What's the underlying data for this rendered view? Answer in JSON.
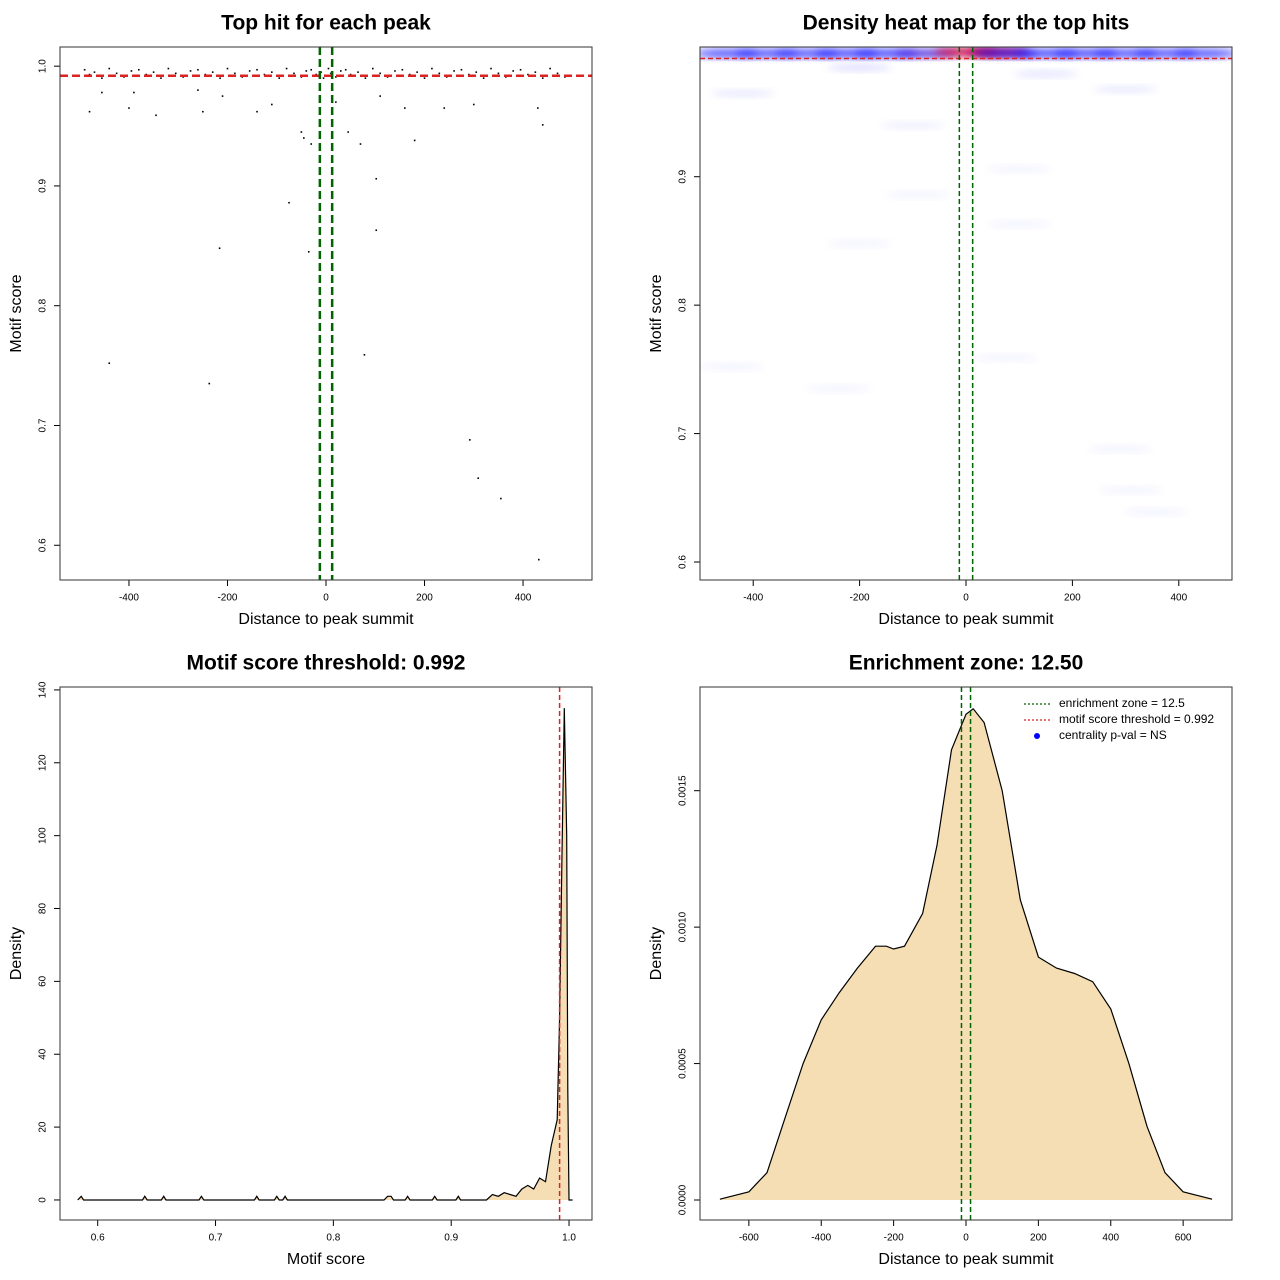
{
  "chart_data": [
    {
      "type": "scatter",
      "title": "Top hit for each peak",
      "x_label": "Distance to peak summit",
      "y_label": "Motif score",
      "color": "#000000",
      "x": [
        -490,
        -480,
        -470,
        -455,
        -440,
        -425,
        -410,
        -395,
        -380,
        -365,
        -350,
        -335,
        -320,
        -305,
        -290,
        -275,
        -260,
        -245,
        -230,
        -215,
        -200,
        -185,
        -170,
        -155,
        -140,
        -125,
        -110,
        -95,
        -80,
        -65,
        -50,
        -40,
        -30,
        -20,
        -10,
        -5,
        5,
        10,
        20,
        30,
        40,
        50,
        65,
        80,
        95,
        110,
        125,
        140,
        155,
        170,
        185,
        200,
        215,
        230,
        245,
        260,
        275,
        290,
        305,
        320,
        335,
        350,
        365,
        380,
        395,
        410,
        425,
        440,
        455,
        470,
        485,
        -440,
        -237,
        -216,
        -75,
        -35,
        78,
        102,
        102,
        292,
        309,
        355,
        432,
        -50,
        -45,
        -30,
        45,
        70,
        180,
        440,
        -345,
        -250,
        -480,
        -140,
        -110,
        -400,
        -390,
        -455,
        240,
        300,
        160,
        430,
        -210,
        -260,
        20,
        110
      ],
      "y": [
        0.997,
        0.993,
        0.995,
        0.99,
        0.998,
        0.994,
        0.991,
        0.996,
        0.997,
        0.993,
        0.995,
        0.99,
        0.998,
        0.994,
        0.991,
        0.996,
        0.997,
        0.993,
        0.995,
        0.99,
        0.998,
        0.994,
        0.991,
        0.996,
        0.997,
        0.993,
        0.995,
        0.99,
        0.998,
        0.994,
        0.991,
        0.996,
        0.997,
        0.993,
        0.995,
        0.99,
        0.998,
        0.994,
        0.991,
        0.996,
        0.997,
        0.993,
        0.995,
        0.99,
        0.998,
        0.994,
        0.991,
        0.996,
        0.997,
        0.993,
        0.995,
        0.99,
        0.998,
        0.994,
        0.991,
        0.996,
        0.997,
        0.993,
        0.995,
        0.99,
        0.998,
        0.994,
        0.991,
        0.996,
        0.997,
        0.993,
        0.995,
        0.99,
        0.998,
        0.994,
        0.991,
        0.752,
        0.735,
        0.848,
        0.886,
        0.845,
        0.759,
        0.906,
        0.863,
        0.688,
        0.656,
        0.639,
        0.588,
        0.945,
        0.94,
        0.935,
        0.945,
        0.935,
        0.938,
        0.951,
        0.959,
        0.962,
        0.962,
        0.962,
        0.968,
        0.965,
        0.978,
        0.978,
        0.965,
        0.968,
        0.965,
        0.965,
        0.975,
        0.98,
        0.97,
        0.975
      ],
      "xlim": [
        -540,
        540
      ],
      "ylim": [
        0.571,
        1.016
      ],
      "xticks": [
        -400,
        -200,
        0,
        200,
        400
      ],
      "yticks": [
        0.6,
        0.7,
        0.8,
        0.9,
        {
          "value": 1.0,
          "label": "1.0"
        }
      ],
      "ref_lines": [
        {
          "axis": "y",
          "value": 0.992,
          "color": "#dd2222"
        },
        {
          "axis": "x",
          "value": -12.5,
          "color": "#006400"
        },
        {
          "axis": "x",
          "value": 12.5,
          "color": "#006400"
        }
      ]
    },
    {
      "type": "heatmap",
      "title": "Density heat map for the top hits",
      "x_label": "Distance to peak summit",
      "y_label": "Motif score",
      "low_color": "#0000ff",
      "high_color": "#cc0044",
      "x": [
        -450,
        -375,
        -300,
        -225,
        -150,
        -75,
        0,
        60,
        75,
        150,
        225,
        300,
        375,
        450,
        -200,
        150,
        -420,
        300,
        -100,
        -200,
        -90,
        100,
        100,
        -440,
        -240,
        75,
        290,
        310,
        355
      ],
      "y": [
        0.996,
        0.996,
        0.996,
        0.996,
        0.996,
        0.996,
        0.997,
        0.997,
        0.996,
        0.996,
        0.996,
        0.996,
        0.996,
        0.996,
        0.985,
        0.98,
        0.965,
        0.968,
        0.94,
        0.848,
        0.886,
        0.906,
        0.863,
        0.752,
        0.735,
        0.759,
        0.688,
        0.656,
        0.639
      ],
      "values": [
        0.7,
        0.7,
        0.7,
        0.75,
        0.75,
        0.8,
        1.0,
        0.95,
        0.8,
        0.75,
        0.75,
        0.7,
        0.7,
        0.7,
        0.15,
        0.12,
        0.1,
        0.1,
        0.08,
        0.06,
        0.06,
        0.06,
        0.06,
        0.06,
        0.06,
        0.06,
        0.06,
        0.06,
        0.06
      ],
      "xlim": [
        -500,
        500
      ],
      "ylim": [
        0.586,
        1.001
      ],
      "xticks": [
        -400,
        -200,
        0,
        200,
        400
      ],
      "yticks": [
        0.6,
        0.7,
        0.8,
        0.9
      ],
      "ref_lines": [
        {
          "axis": "y",
          "value": 0.992,
          "color": "#dd2222"
        },
        {
          "axis": "x",
          "value": -12.5,
          "color": "#006400"
        },
        {
          "axis": "x",
          "value": 12.5,
          "color": "#006400"
        }
      ]
    },
    {
      "type": "density",
      "title": "Motif score threshold: 0.992",
      "x_label": "Motif score",
      "y_label": "Density",
      "color": "#000000",
      "fill": "#f5deb3",
      "x": [
        0.583,
        0.586,
        0.588,
        0.59,
        0.638,
        0.64,
        0.642,
        0.654,
        0.656,
        0.658,
        0.686,
        0.688,
        0.69,
        0.733,
        0.735,
        0.737,
        0.75,
        0.752,
        0.754,
        0.757,
        0.759,
        0.761,
        0.843,
        0.846,
        0.849,
        0.851,
        0.861,
        0.863,
        0.865,
        0.884,
        0.886,
        0.888,
        0.904,
        0.906,
        0.908,
        0.93,
        0.935,
        0.94,
        0.945,
        0.95,
        0.955,
        0.96,
        0.965,
        0.97,
        0.975,
        0.98,
        0.985,
        0.99,
        0.992,
        0.994,
        0.996,
        0.998,
        0.999,
        1.0,
        1.003
      ],
      "values": [
        0,
        1,
        0,
        0,
        0,
        1,
        0,
        0,
        1,
        0,
        0,
        1,
        0,
        0,
        1,
        0,
        0,
        1,
        0,
        0,
        1,
        0,
        0,
        1,
        1,
        0,
        0,
        1,
        0,
        0,
        1,
        0,
        0,
        1,
        0,
        0,
        1.5,
        1,
        2,
        1.5,
        1,
        3,
        4,
        3,
        6,
        5,
        15,
        22,
        50,
        95,
        135,
        100,
        30,
        0,
        0
      ],
      "xlim": [
        0.568,
        1.0195
      ],
      "ylim": [
        -5.5,
        140.8
      ],
      "xticks": [
        0.6,
        0.7,
        0.8,
        0.9,
        {
          "value": 1.0,
          "label": "1.0"
        }
      ],
      "yticks": [
        0,
        20,
        40,
        60,
        80,
        100,
        120,
        140
      ],
      "ref_lines": [
        {
          "axis": "x",
          "value": 0.992,
          "color": "#dd2222"
        }
      ]
    },
    {
      "type": "density",
      "title": "Enrichment zone: 12.50",
      "x_label": "Distance to peak summit",
      "y_label": "Density",
      "color": "#000000",
      "fill": "#f5deb3",
      "x": [
        -680,
        -600,
        -550,
        -500,
        -450,
        -400,
        -350,
        -300,
        -250,
        -220,
        -200,
        -170,
        -120,
        -80,
        -40,
        0,
        20,
        50,
        100,
        150,
        200,
        250,
        300,
        350,
        400,
        450,
        500,
        550,
        600,
        680
      ],
      "values": [
        3e-06,
        3e-05,
        0.0001,
        0.0003,
        0.0005,
        0.00066,
        0.00076,
        0.00085,
        0.00093,
        0.00093,
        0.00092,
        0.00093,
        0.00105,
        0.0013,
        0.00165,
        0.00178,
        0.0018,
        0.00175,
        0.0015,
        0.0011,
        0.00089,
        0.00085,
        0.00083,
        0.0008,
        0.0007,
        0.0005,
        0.00027,
        0.0001,
        3e-05,
        3e-06
      ],
      "xlim": [
        -735,
        735
      ],
      "ylim": [
        -7.33e-05,
        0.00188
      ],
      "xticks": [
        -600,
        -400,
        -200,
        0,
        200,
        400,
        600
      ],
      "yticks": [
        {
          "value": 0,
          "label": "0.0000"
        },
        {
          "value": 0.0005,
          "label": "0.0005"
        },
        {
          "value": 0.001,
          "label": "0.0010"
        },
        {
          "value": 0.0015,
          "label": "0.0015"
        }
      ],
      "ref_lines": [
        {
          "axis": "x",
          "value": -12.5,
          "color": "#006400"
        },
        {
          "axis": "x",
          "value": 12.5,
          "color": "#006400"
        }
      ],
      "legend": [
        {
          "name": "enrichment zone = 12.5",
          "color": "#006400",
          "marker": "line"
        },
        {
          "name": "motif score threshold = 0.992",
          "color": "#dd2222",
          "marker": "line"
        },
        {
          "name": "centrality p-val = NS",
          "color": "#0000ff",
          "marker": "dot"
        }
      ]
    }
  ]
}
